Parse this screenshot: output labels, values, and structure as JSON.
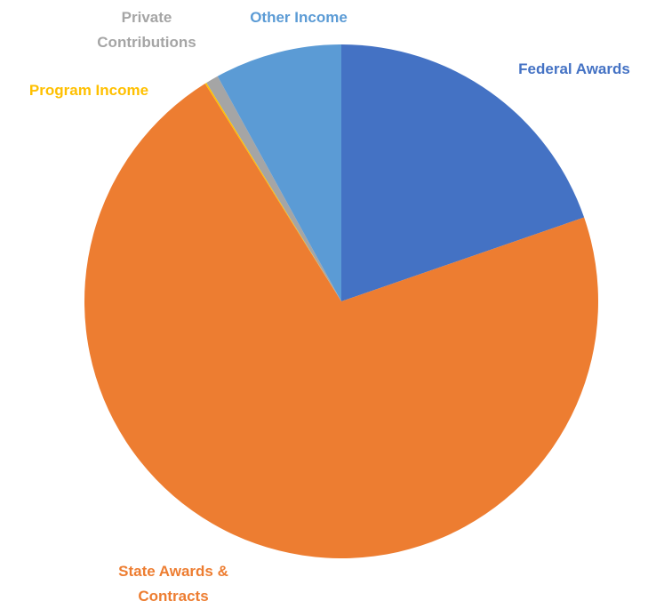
{
  "chart_data": {
    "type": "pie",
    "categories": [
      "Federal Awards",
      "State Awards & Contracts",
      "Program Income",
      "Private Contributions",
      "Other Income"
    ],
    "values": [
      19.7,
      71.4,
      0.1,
      0.8,
      8.0
    ],
    "colors": [
      "#4472c4",
      "#ed7d31",
      "#ffc000",
      "#a5a5a5",
      "#5b9bd5"
    ]
  }
}
